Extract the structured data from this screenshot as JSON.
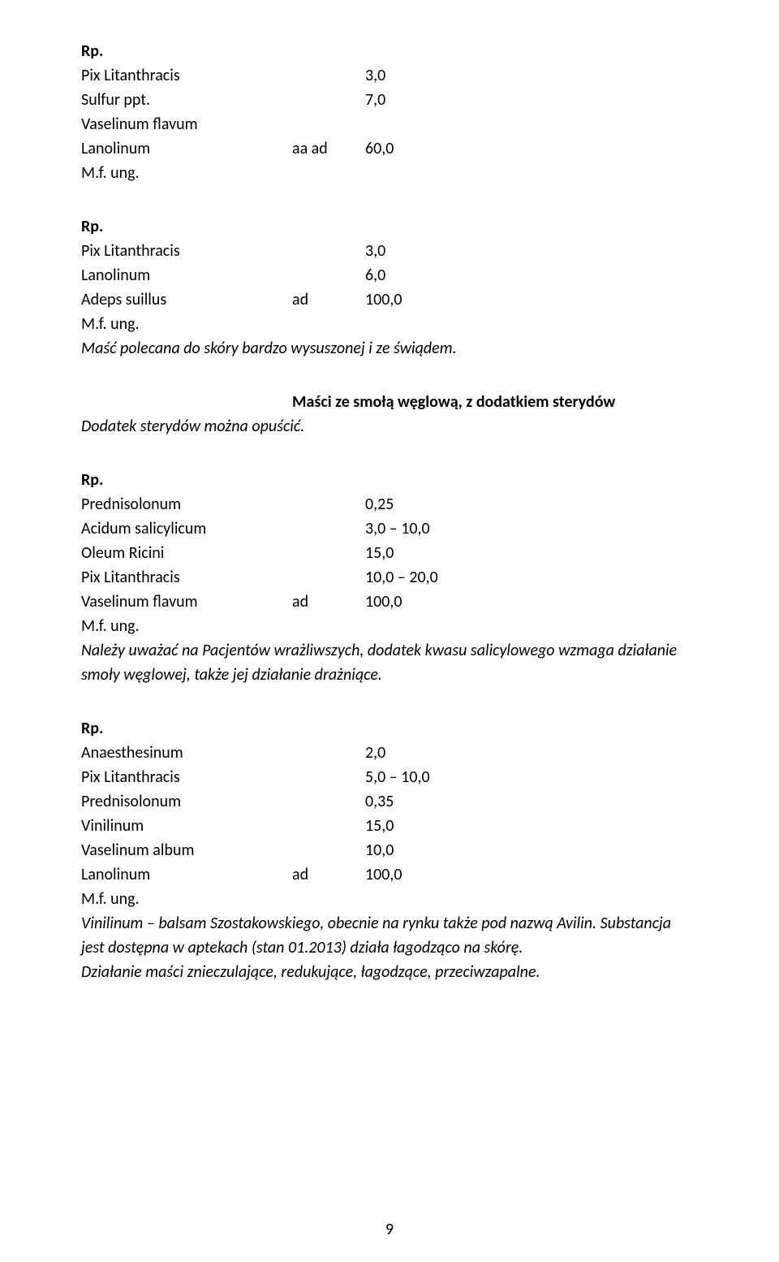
{
  "pageNumber": "9",
  "labels": {
    "rp": "Rp.",
    "mfung": "M.f. ung."
  },
  "recipe1": {
    "rows": [
      {
        "name": "Pix Litanthracis",
        "mid": "",
        "val": "3,0"
      },
      {
        "name": "Sulfur ppt.",
        "mid": "",
        "val": "7,0"
      },
      {
        "name": "Vaselinum flavum",
        "mid": "",
        "val": ""
      },
      {
        "name": "Lanolinum",
        "mid": "aa ad",
        "val": "60,0"
      }
    ]
  },
  "recipe2": {
    "rows": [
      {
        "name": "Pix Litanthracis",
        "mid": "",
        "val": "3,0"
      },
      {
        "name": "Lanolinum",
        "mid": "",
        "val": "6,0"
      },
      {
        "name": "Adeps suillus",
        "mid": "ad",
        "val": "100,0"
      }
    ],
    "note": "Maść polecana do skóry bardzo wysuszonej i ze świądem."
  },
  "section": {
    "title": "Maści ze smołą węglową, z dodatkiem sterydów",
    "sub": "Dodatek sterydów można opuścić."
  },
  "recipe3": {
    "rows": [
      {
        "name": "Prednisolonum",
        "mid": "",
        "val": "0,25"
      },
      {
        "name": "Acidum salicylicum",
        "mid": "",
        "val": "3,0 – 10,0"
      },
      {
        "name": "Oleum Ricini",
        "mid": "",
        "val": "15,0"
      },
      {
        "name": "Pix Litanthracis",
        "mid": "",
        "val": "10,0 – 20,0"
      },
      {
        "name": "Vaselinum flavum",
        "mid": "ad",
        "val": "100,0"
      }
    ],
    "note": "Należy uważać na Pacjentów wrażliwszych, dodatek kwasu salicylowego wzmaga działanie smoły węglowej, także jej działanie drażniące."
  },
  "recipe4": {
    "rows": [
      {
        "name": "Anaesthesinum",
        "mid": "",
        "val": "2,0"
      },
      {
        "name": "Pix Litanthracis",
        "mid": "",
        "val": "5,0 – 10,0"
      },
      {
        "name": "Prednisolonum",
        "mid": "",
        "val": "0,35"
      },
      {
        "name": "Vinilinum",
        "mid": "",
        "val": "15,0"
      },
      {
        "name": "Vaselinum album",
        "mid": "",
        "val": "10,0"
      },
      {
        "name": "Lanolinum",
        "mid": "ad",
        "val": "100,0"
      }
    ],
    "notes": [
      "Vinilinum – balsam Szostakowskiego, obecnie na rynku także pod nazwą Avilin. Substancja jest dostępna w aptekach (stan 01.2013) działa łagodząco na skórę.",
      "Działanie maści znieczulające, redukujące, łagodzące, przeciwzapalne."
    ]
  }
}
